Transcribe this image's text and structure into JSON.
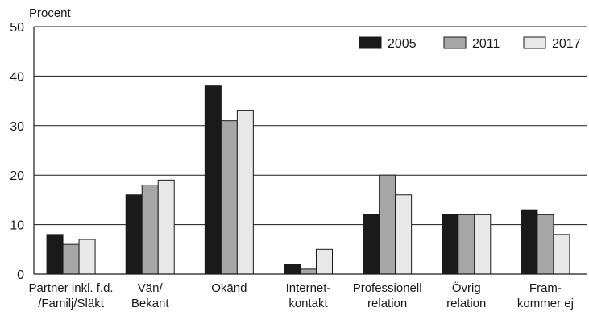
{
  "chart_data": {
    "type": "bar",
    "ylabel": "Procent",
    "ylim": [
      0,
      50
    ],
    "yticks": [
      0,
      10,
      20,
      30,
      40,
      50
    ],
    "grid": true,
    "legend_position": "top-right",
    "categories": [
      [
        "Partner inkl. f.d.",
        "/Familj/Släkt"
      ],
      [
        "Vän/",
        "Bekant"
      ],
      [
        "Okänd"
      ],
      [
        "Internet-",
        "kontakt"
      ],
      [
        "Professionell",
        "relation"
      ],
      [
        "Övrig",
        "relation"
      ],
      [
        "Fram-",
        "kommer ej"
      ]
    ],
    "series": [
      {
        "name": "2005",
        "color": "#1a1a1a",
        "values": [
          8,
          16,
          38,
          2,
          12,
          12,
          13
        ]
      },
      {
        "name": "2011",
        "color": "#a6a6a6",
        "values": [
          6,
          18,
          31,
          1,
          20,
          12,
          12
        ]
      },
      {
        "name": "2017",
        "color": "#e8e8e8",
        "values": [
          7,
          19,
          33,
          5,
          16,
          12,
          8
        ]
      }
    ]
  }
}
